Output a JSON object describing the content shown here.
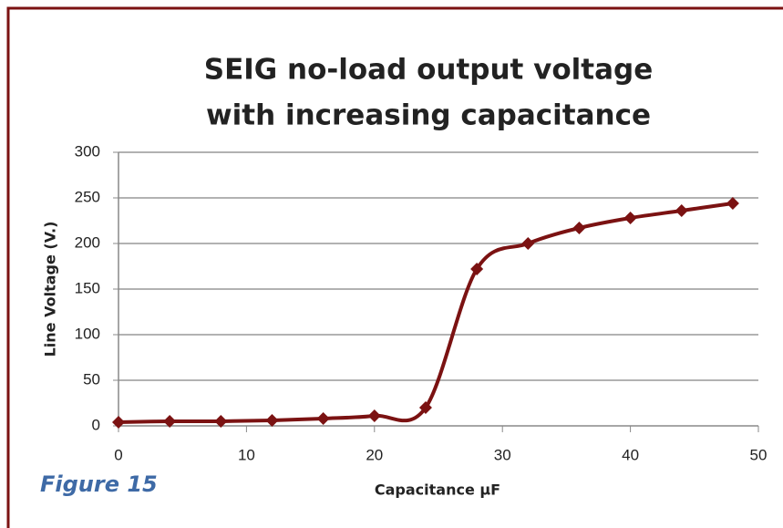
{
  "chart_data": {
    "type": "line",
    "title": [
      "SEIG no-load output voltage",
      "with increasing capacitance"
    ],
    "x_label": "Capacitance µF",
    "y_label": "Line Voltage (V.)",
    "caption": "Figure 15",
    "x": [
      0,
      4,
      8,
      12,
      16,
      20,
      24,
      28,
      32,
      36,
      40,
      44,
      48
    ],
    "series": [
      {
        "name": "Line Voltage",
        "color": "#7b1212",
        "values": [
          4,
          5,
          5,
          6,
          8,
          11,
          20,
          172,
          200,
          217,
          228,
          236,
          244
        ]
      }
    ],
    "xlim": [
      0,
      50
    ],
    "xticks": [
      0,
      10,
      20,
      30,
      40,
      50
    ],
    "ylim": [
      0,
      300
    ],
    "yticks": [
      0,
      50,
      100,
      150,
      200,
      250,
      300
    ],
    "grid": true
  }
}
